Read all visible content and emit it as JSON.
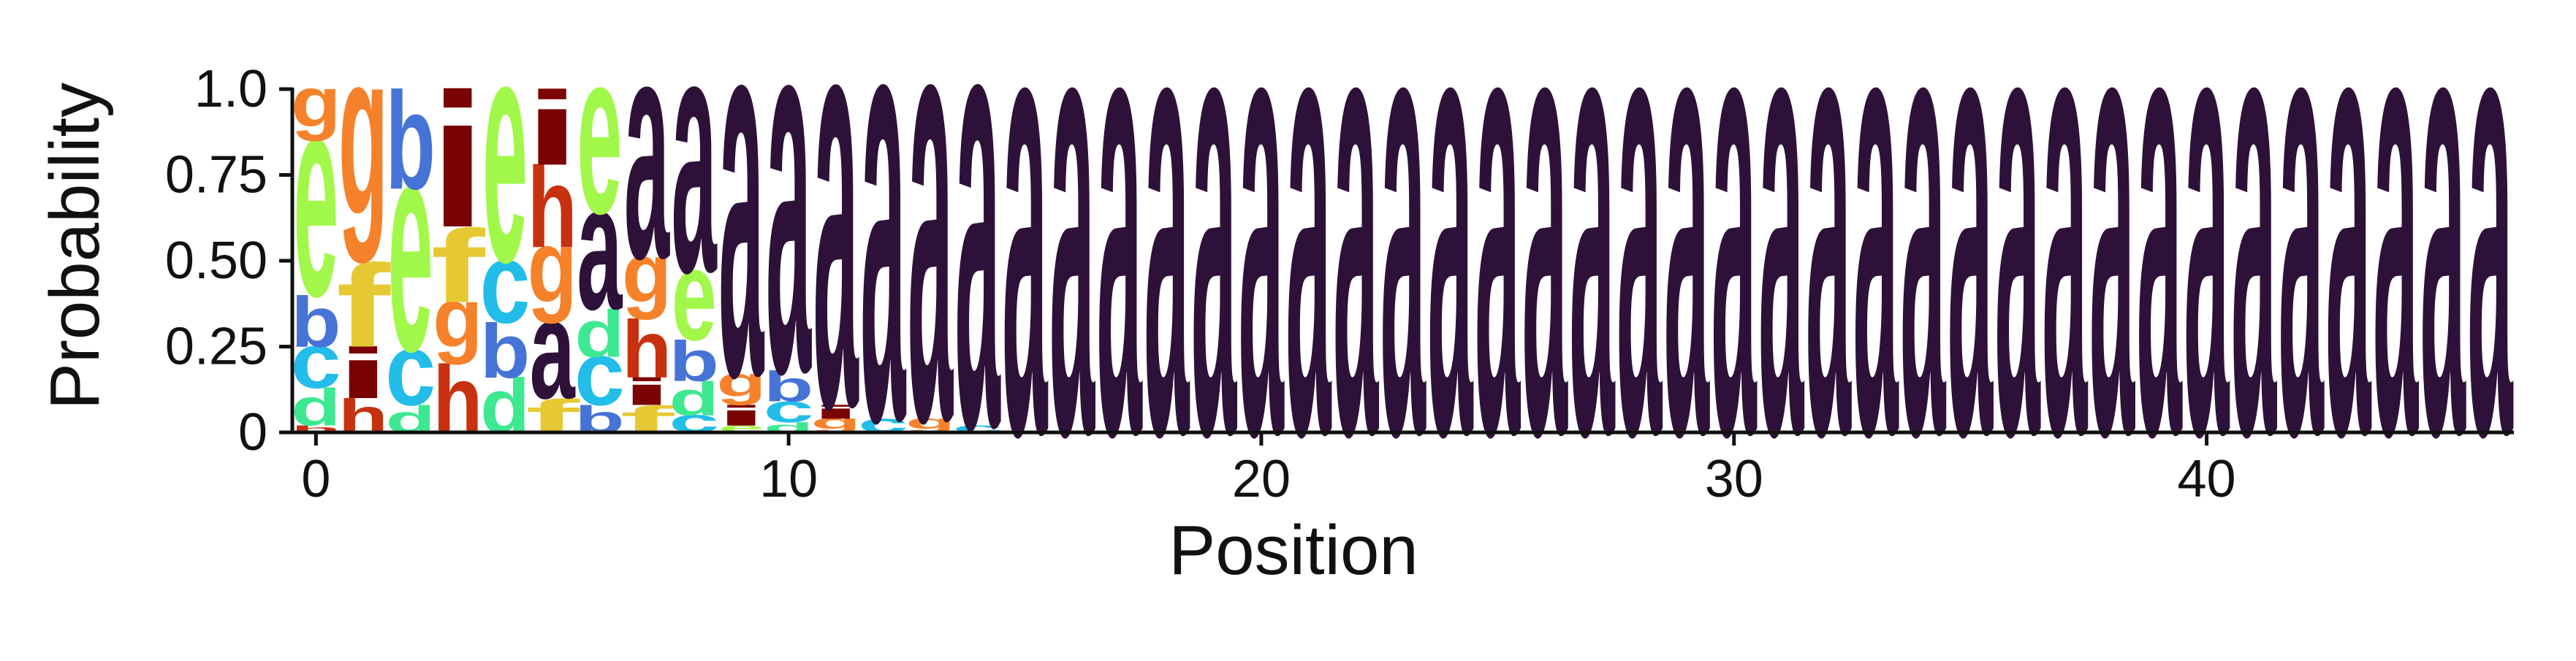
{
  "chart_data": {
    "type": "sequence-logo",
    "xlabel": "Position",
    "ylabel": "Probability",
    "ylim": [
      0,
      1
    ],
    "xlim": [
      -0.5,
      46.5
    ],
    "x_ticks": [
      0,
      10,
      20,
      30,
      40
    ],
    "x_tick_labels": [
      "0",
      "10",
      "20",
      "30",
      "40"
    ],
    "y_ticks": [
      0,
      0.25,
      0.5,
      0.75,
      1.0
    ],
    "y_tick_labels": [
      "0",
      "0.25",
      "0.50",
      "0.75",
      "1.0"
    ],
    "grid": false,
    "legend": "none",
    "letter_colors": {
      "a": "#2e1139",
      "b": "#4673d6",
      "c": "#22bde8",
      "d": "#3ee891",
      "e": "#a2f84a",
      "f": "#e6c932",
      "g": "#f5822a",
      "h": "#c8310f",
      "i": "#7a0403"
    },
    "positions": [
      {
        "x": 0,
        "letters": [
          [
            "h",
            0.02
          ],
          [
            "d",
            0.11
          ],
          [
            "c",
            0.12
          ],
          [
            "b",
            0.15
          ],
          [
            "e",
            0.45
          ],
          [
            "g",
            0.15
          ]
        ]
      },
      {
        "x": 1,
        "letters": [
          [
            "h",
            0.1
          ],
          [
            "i",
            0.15
          ],
          [
            "f",
            0.25
          ],
          [
            "g",
            0.5
          ]
        ]
      },
      {
        "x": 2,
        "letters": [
          [
            "d",
            0.08
          ],
          [
            "c",
            0.16
          ],
          [
            "e",
            0.47
          ],
          [
            "b",
            0.29
          ]
        ]
      },
      {
        "x": 3,
        "letters": [
          [
            "h",
            0.2
          ],
          [
            "g",
            0.18
          ],
          [
            "f",
            0.22
          ],
          [
            "i",
            0.4
          ]
        ]
      },
      {
        "x": 4,
        "letters": [
          [
            "d",
            0.16
          ],
          [
            "b",
            0.16
          ],
          [
            "c",
            0.18
          ],
          [
            "e",
            0.5
          ]
        ]
      },
      {
        "x": 5,
        "letters": [
          [
            "f",
            0.1
          ],
          [
            "a",
            0.22
          ],
          [
            "g",
            0.22
          ],
          [
            "h",
            0.24
          ],
          [
            "i",
            0.22
          ]
        ]
      },
      {
        "x": 6,
        "letters": [
          [
            "b",
            0.08
          ],
          [
            "c",
            0.14
          ],
          [
            "d",
            0.14
          ],
          [
            "a",
            0.28
          ],
          [
            "e",
            0.36
          ]
        ]
      },
      {
        "x": 7,
        "letters": [
          [
            "f",
            0.08
          ],
          [
            "i",
            0.08
          ],
          [
            "h",
            0.17
          ],
          [
            "g",
            0.18
          ],
          [
            "a",
            0.49
          ]
        ]
      },
      {
        "x": 8,
        "letters": [
          [
            "c",
            0.05
          ],
          [
            "d",
            0.1
          ],
          [
            "b",
            0.12
          ],
          [
            "e",
            0.2
          ],
          [
            "a",
            0.53
          ]
        ]
      },
      {
        "x": 9,
        "letters": [
          [
            "e",
            0.02
          ],
          [
            "i",
            0.06
          ],
          [
            "g",
            0.09
          ],
          [
            "a",
            0.83
          ]
        ]
      },
      {
        "x": 10,
        "letters": [
          [
            "d",
            0.03
          ],
          [
            "c",
            0.06
          ],
          [
            "b",
            0.09
          ],
          [
            "a",
            0.82
          ]
        ]
      },
      {
        "x": 11,
        "letters": [
          [
            "g",
            0.04
          ],
          [
            "i",
            0.04
          ],
          [
            "a",
            0.92
          ]
        ]
      },
      {
        "x": 12,
        "letters": [
          [
            "c",
            0.04
          ],
          [
            "a",
            0.96
          ]
        ]
      },
      {
        "x": 13,
        "letters": [
          [
            "g",
            0.04
          ],
          [
            "a",
            0.96
          ]
        ]
      },
      {
        "x": 14,
        "letters": [
          [
            "c",
            0.02
          ],
          [
            "a",
            0.98
          ]
        ]
      },
      {
        "x": 15,
        "letters": [
          [
            "a",
            0.99
          ]
        ]
      },
      {
        "x": 16,
        "letters": [
          [
            "a",
            0.99
          ]
        ]
      },
      {
        "x": 17,
        "letters": [
          [
            "a",
            0.99
          ]
        ]
      },
      {
        "x": 18,
        "letters": [
          [
            "a",
            0.99
          ]
        ]
      },
      {
        "x": 19,
        "letters": [
          [
            "a",
            0.99
          ]
        ]
      },
      {
        "x": 20,
        "letters": [
          [
            "a",
            0.99
          ]
        ]
      },
      {
        "x": 21,
        "letters": [
          [
            "a",
            0.99
          ]
        ]
      },
      {
        "x": 22,
        "letters": [
          [
            "a",
            0.99
          ]
        ]
      },
      {
        "x": 23,
        "letters": [
          [
            "a",
            0.99
          ]
        ]
      },
      {
        "x": 24,
        "letters": [
          [
            "a",
            0.99
          ]
        ]
      },
      {
        "x": 25,
        "letters": [
          [
            "a",
            0.99
          ]
        ]
      },
      {
        "x": 26,
        "letters": [
          [
            "a",
            0.99
          ]
        ]
      },
      {
        "x": 27,
        "letters": [
          [
            "a",
            0.99
          ]
        ]
      },
      {
        "x": 28,
        "letters": [
          [
            "a",
            0.99
          ]
        ]
      },
      {
        "x": 29,
        "letters": [
          [
            "a",
            0.99
          ]
        ]
      },
      {
        "x": 30,
        "letters": [
          [
            "a",
            0.99
          ]
        ]
      },
      {
        "x": 31,
        "letters": [
          [
            "a",
            0.99
          ]
        ]
      },
      {
        "x": 32,
        "letters": [
          [
            "a",
            0.99
          ]
        ]
      },
      {
        "x": 33,
        "letters": [
          [
            "a",
            0.99
          ]
        ]
      },
      {
        "x": 34,
        "letters": [
          [
            "a",
            0.99
          ]
        ]
      },
      {
        "x": 35,
        "letters": [
          [
            "a",
            0.99
          ]
        ]
      },
      {
        "x": 36,
        "letters": [
          [
            "a",
            0.99
          ]
        ]
      },
      {
        "x": 37,
        "letters": [
          [
            "a",
            0.99
          ]
        ]
      },
      {
        "x": 38,
        "letters": [
          [
            "a",
            0.99
          ]
        ]
      },
      {
        "x": 39,
        "letters": [
          [
            "a",
            0.99
          ]
        ]
      },
      {
        "x": 40,
        "letters": [
          [
            "a",
            0.99
          ]
        ]
      },
      {
        "x": 41,
        "letters": [
          [
            "a",
            0.99
          ]
        ]
      },
      {
        "x": 42,
        "letters": [
          [
            "a",
            0.99
          ]
        ]
      },
      {
        "x": 43,
        "letters": [
          [
            "a",
            0.99
          ]
        ]
      },
      {
        "x": 44,
        "letters": [
          [
            "a",
            0.99
          ]
        ]
      },
      {
        "x": 45,
        "letters": [
          [
            "a",
            0.99
          ]
        ]
      },
      {
        "x": 46,
        "letters": [
          [
            "a",
            0.99
          ]
        ]
      }
    ]
  }
}
